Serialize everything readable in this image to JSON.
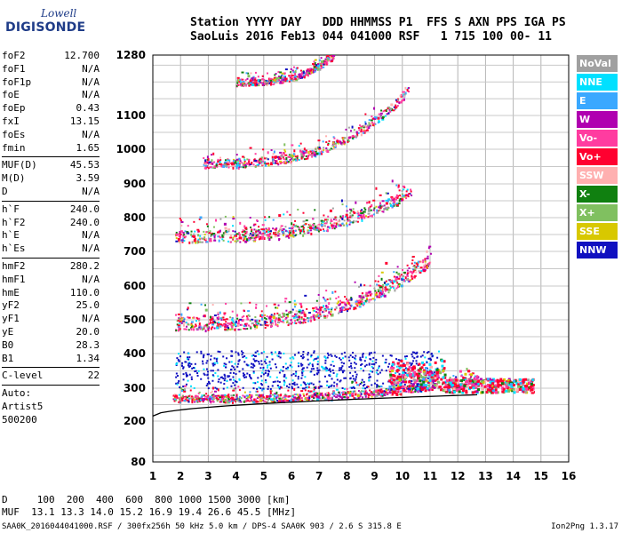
{
  "logo": {
    "line1": "Lowell",
    "line2": "DIGISONDE"
  },
  "header": {
    "line1": "Station YYYY DAY   DDD HHMMSS P1  FFS S AXN PPS IGA PS",
    "line2": "SaoLuis 2016 Feb13 044 041000 RSF   1 715 100 00- 11"
  },
  "params_groups": [
    [
      {
        "label": "foF2",
        "value": "12.700"
      },
      {
        "label": "foF1",
        "value": "N/A"
      },
      {
        "label": "foF1p",
        "value": "N/A"
      },
      {
        "label": "foE",
        "value": "N/A"
      },
      {
        "label": "foEp",
        "value": "0.43"
      },
      {
        "label": "fxI",
        "value": "13.15"
      },
      {
        "label": "foEs",
        "value": "N/A"
      },
      {
        "label": "fmin",
        "value": "1.65"
      }
    ],
    [
      {
        "label": "MUF(D)",
        "value": "45.53"
      },
      {
        "label": "M(D)",
        "value": "3.59"
      },
      {
        "label": "D",
        "value": "N/A"
      }
    ],
    [
      {
        "label": "h`F",
        "value": "240.0"
      },
      {
        "label": "h`F2",
        "value": "240.0"
      },
      {
        "label": "h`E",
        "value": "N/A"
      },
      {
        "label": "h`Es",
        "value": "N/A"
      }
    ],
    [
      {
        "label": "hmF2",
        "value": "280.2"
      },
      {
        "label": "hmF1",
        "value": "N/A"
      },
      {
        "label": "hmE",
        "value": "110.0"
      },
      {
        "label": "yF2",
        "value": "25.0"
      },
      {
        "label": "yF1",
        "value": "N/A"
      },
      {
        "label": "yE",
        "value": "20.0"
      },
      {
        "label": "B0",
        "value": "28.3"
      },
      {
        "label": "B1",
        "value": "1.34"
      }
    ],
    [
      {
        "label": "C-level",
        "value": "22"
      }
    ]
  ],
  "autoscale": {
    "line1": "Auto:",
    "line2": "Artist5",
    "line3": "500200"
  },
  "legend": [
    {
      "label": "NoVal",
      "color": "#a0a0a0"
    },
    {
      "label": "NNE",
      "color": "#00e0ff"
    },
    {
      "label": "E",
      "color": "#3aa8ff"
    },
    {
      "label": "W",
      "color": "#b000b0"
    },
    {
      "label": "Vo-",
      "color": "#ff3ca0"
    },
    {
      "label": "Vo+",
      "color": "#ff0030"
    },
    {
      "label": "SSW",
      "color": "#ffb0b0"
    },
    {
      "label": "X-",
      "color": "#108010"
    },
    {
      "label": "X+",
      "color": "#80c060"
    },
    {
      "label": "SSE",
      "color": "#d8c800"
    },
    {
      "label": "NNW",
      "color": "#1010c0"
    }
  ],
  "muf_table": {
    "d_line": "D     100  200  400  600  800 1000 1500 3000 [km]",
    "muf_line": "MUF  13.1 13.3 14.0 15.2 16.9 19.4 26.6 45.5 [MHz]"
  },
  "footer": {
    "left": "SAA0K_2016044041000.RSF / 300fx256h 50 kHz 5.0 km / DPS-4 SAA0K 903 / 2.6 S 315.8 E",
    "right": "Ion2Png 1.3.17"
  },
  "chart_data": {
    "type": "scatter",
    "x_label": "",
    "y_label": "",
    "xlim": [
      1,
      16
    ],
    "x_ticks": [
      1,
      2,
      3,
      4,
      5,
      6,
      7,
      8,
      9,
      10,
      11,
      12,
      13,
      14,
      15,
      16
    ],
    "y_ticks": [
      80,
      200,
      300,
      400,
      500,
      600,
      700,
      800,
      900,
      1000,
      1100,
      1280
    ],
    "grid": true,
    "y_scale": "nonlinear (virtual height, km)",
    "traces": [
      {
        "name": "F2 1-hop",
        "f_start": 1.7,
        "f_end": 12.7,
        "h_start": 270,
        "h_end": 330,
        "band": 22
      },
      {
        "name": "F2 2-hop",
        "f_start": 1.8,
        "f_end": 11.0,
        "h_start": 490,
        "h_end": 680,
        "band": 40
      },
      {
        "name": "F2 3-hop",
        "f_start": 1.8,
        "f_end": 10.3,
        "h_start": 745,
        "h_end": 880,
        "band": 35
      },
      {
        "name": "F2 4-hop",
        "f_start": 2.8,
        "f_end": 10.2,
        "h_start": 960,
        "h_end": 1175,
        "band": 25
      },
      {
        "name": "F2 5-hop",
        "f_start": 4.0,
        "f_end": 7.5,
        "h_start": 1200,
        "h_end": 1280,
        "band": 20
      }
    ],
    "profile_line": {
      "f_start": 1.0,
      "f_end": 12.7,
      "h_start": 215,
      "h_end": 280
    }
  }
}
